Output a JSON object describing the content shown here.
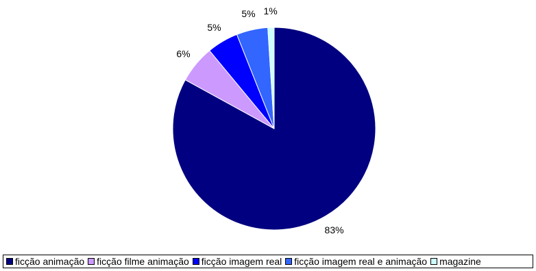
{
  "chart_data": {
    "type": "pie",
    "title": "",
    "categories": [
      "ficção animação",
      "ficção filme animação",
      "ficção imagem real",
      "ficção imagem real e animação",
      "magazine"
    ],
    "values": [
      83,
      6,
      5,
      5,
      1
    ],
    "labels": [
      "83%",
      "6%",
      "5%",
      "5%",
      "1%"
    ],
    "colors": [
      "#000080",
      "#CC99FF",
      "#0000FF",
      "#3366FF",
      "#CCFFFF"
    ],
    "start_angle": "12 o'clock",
    "direction": "clockwise",
    "legend_position": "bottom"
  }
}
